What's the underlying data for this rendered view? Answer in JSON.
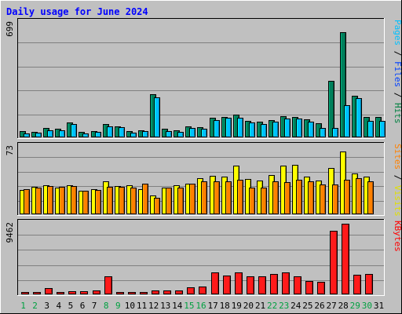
{
  "chart_data": {
    "type": "bar",
    "title": "Daily usage for June 2024",
    "days": [
      "1",
      "2",
      "3",
      "4",
      "5",
      "6",
      "7",
      "8",
      "9",
      "10",
      "11",
      "12",
      "13",
      "14",
      "15",
      "16",
      "17",
      "18",
      "19",
      "20",
      "21",
      "22",
      "23",
      "24",
      "25",
      "26",
      "27",
      "28",
      "29",
      "30",
      "31"
    ],
    "weekend_days": [
      "1",
      "2",
      "8",
      "9",
      "15",
      "16",
      "22",
      "23",
      "29",
      "30"
    ],
    "panels": [
      {
        "id": "hits_files_pages",
        "max_label": "699",
        "ymax": 699,
        "side_labels": [
          {
            "text": "Pages",
            "color": "#00c0ff"
          },
          {
            "text": " / ",
            "color": "#000000"
          },
          {
            "text": "Files",
            "color": "#0040ff"
          },
          {
            "text": " / ",
            "color": "#000000"
          },
          {
            "text": "Hits",
            "color": "#008040"
          }
        ],
        "series": [
          {
            "name": "Hits",
            "color": "#00805c",
            "values": [
              35,
              30,
              55,
              50,
              85,
              30,
              35,
              75,
              65,
              35,
              40,
              260,
              50,
              40,
              65,
              60,
              115,
              120,
              135,
              95,
              90,
              100,
              125,
              120,
              105,
              80,
              340,
              640,
              250,
              120,
              120
            ]
          },
          {
            "name": "Files",
            "color": "#00c0ff",
            "values": [
              20,
              25,
              40,
              40,
              75,
              20,
              30,
              65,
              60,
              25,
              35,
              240,
              35,
              30,
              55,
              50,
              100,
              115,
              115,
              85,
              75,
              90,
              110,
              110,
              90,
              55,
              55,
              195,
              235,
              95,
              95
            ]
          },
          {
            "name": "Pages",
            "color": "#00e0ff",
            "values": [
              0,
              0,
              0,
              0,
              0,
              0,
              0,
              0,
              0,
              0,
              0,
              0,
              0,
              0,
              0,
              0,
              0,
              0,
              0,
              0,
              0,
              0,
              0,
              0,
              0,
              0,
              0,
              0,
              0,
              0,
              0
            ]
          }
        ]
      },
      {
        "id": "visits_sites",
        "max_label": "73",
        "ymax": 73,
        "side_labels": [
          {
            "text": "Sites",
            "color": "#ff8000"
          },
          {
            "text": " / ",
            "color": "#000000"
          },
          {
            "text": "Visits",
            "color": "#e0e000"
          }
        ],
        "series": [
          {
            "name": "Visits",
            "color": "#ffff00",
            "values": [
              26,
              29,
              31,
              28,
              31,
              25,
              27,
              35,
              30,
              31,
              27,
              20,
              28,
              31,
              33,
              39,
              41,
              40,
              52,
              38,
              36,
              42,
              52,
              53,
              40,
              36,
              50,
              68,
              44,
              40,
              0
            ]
          },
          {
            "name": "Sites",
            "color": "#ff8000",
            "values": [
              27,
              28,
              30,
              29,
              30,
              25,
              26,
              29,
              29,
              28,
              33,
              17,
              28,
              28,
              33,
              35,
              35,
              35,
              37,
              28,
              28,
              35,
              34,
              37,
              35,
              32,
              32,
              37,
              39,
              35,
              0
            ]
          }
        ]
      },
      {
        "id": "kbytes",
        "max_label": "9462",
        "ymax": 9462,
        "side_labels": [
          {
            "text": "KBytes",
            "color": "#ff0000"
          }
        ],
        "series": [
          {
            "name": "KBytes",
            "color": "#ff1a1a",
            "values": [
              250,
              250,
              700,
              100,
              300,
              350,
              400,
              2300,
              100,
              150,
              100,
              400,
              450,
              400,
              900,
              1000,
              2900,
              2400,
              2900,
              2300,
              2300,
              2700,
              2900,
              2300,
              1700,
              1600,
              8500,
              9500,
              2600,
              2700,
              0
            ]
          }
        ]
      }
    ]
  }
}
